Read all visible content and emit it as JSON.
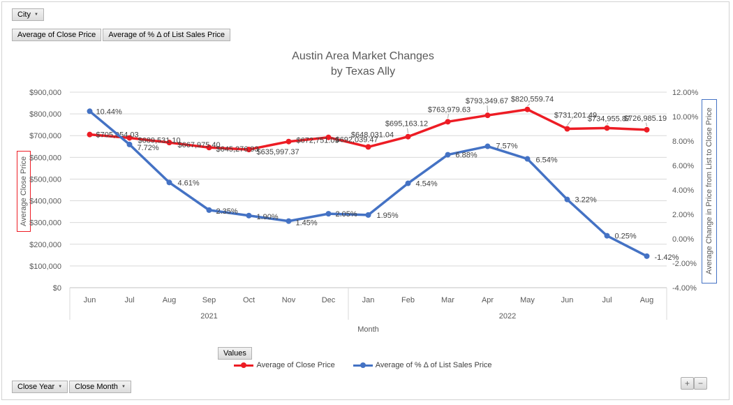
{
  "filter_button": {
    "label": "City"
  },
  "field_buttons": [
    "Average of Close Price",
    "Average of % Δ of List Sales Price"
  ],
  "title": {
    "line1": "Austin Area Market Changes",
    "line2": "by Texas Ally"
  },
  "values_button": "Values",
  "axis_buttons": [
    "Close Year",
    "Close Month"
  ],
  "zoom_buttons": {
    "expand": "+",
    "collapse": "−"
  },
  "chart_data": {
    "type": "line",
    "title": "Austin Area Market Changes by Texas Ally",
    "xlabel": "Month",
    "ylabel_left": "Average Close Price",
    "ylabel_right": "Average Change in Price from List to Close Price",
    "grid": true,
    "legend_position": "bottom",
    "categories": [
      "Jun",
      "Jul",
      "Aug",
      "Sep",
      "Oct",
      "Nov",
      "Dec",
      "Jan",
      "Feb",
      "Mar",
      "Apr",
      "May",
      "Jun",
      "Jul",
      "Aug"
    ],
    "year_groups": [
      {
        "label": "2021",
        "from": 0,
        "to": 6
      },
      {
        "label": "2022",
        "from": 7,
        "to": 14
      }
    ],
    "left_axis": {
      "min": 0,
      "max": 900000,
      "step": 100000,
      "format": "currency0"
    },
    "right_axis": {
      "min": -4,
      "max": 12,
      "step": 2,
      "format": "percent2"
    },
    "series": [
      {
        "name": "Average of Close Price",
        "axis": "left",
        "color": "#ed1c24",
        "format": "currency2",
        "values": [
          705054.03,
          689531.1,
          667975.4,
          645276.93,
          635997.37,
          672751.09,
          692039.47,
          648031.04,
          695163.12,
          763979.63,
          793349.67,
          820559.74,
          731201.49,
          734955.87,
          726985.19
        ]
      },
      {
        "name": "Average of % Δ of List Sales Price",
        "axis": "right",
        "color": "#4472c4",
        "format": "percent2",
        "values": [
          10.44,
          7.72,
          4.61,
          2.35,
          1.9,
          1.45,
          2.05,
          1.95,
          4.54,
          6.88,
          7.57,
          6.54,
          3.22,
          0.25,
          -1.42
        ]
      }
    ]
  }
}
